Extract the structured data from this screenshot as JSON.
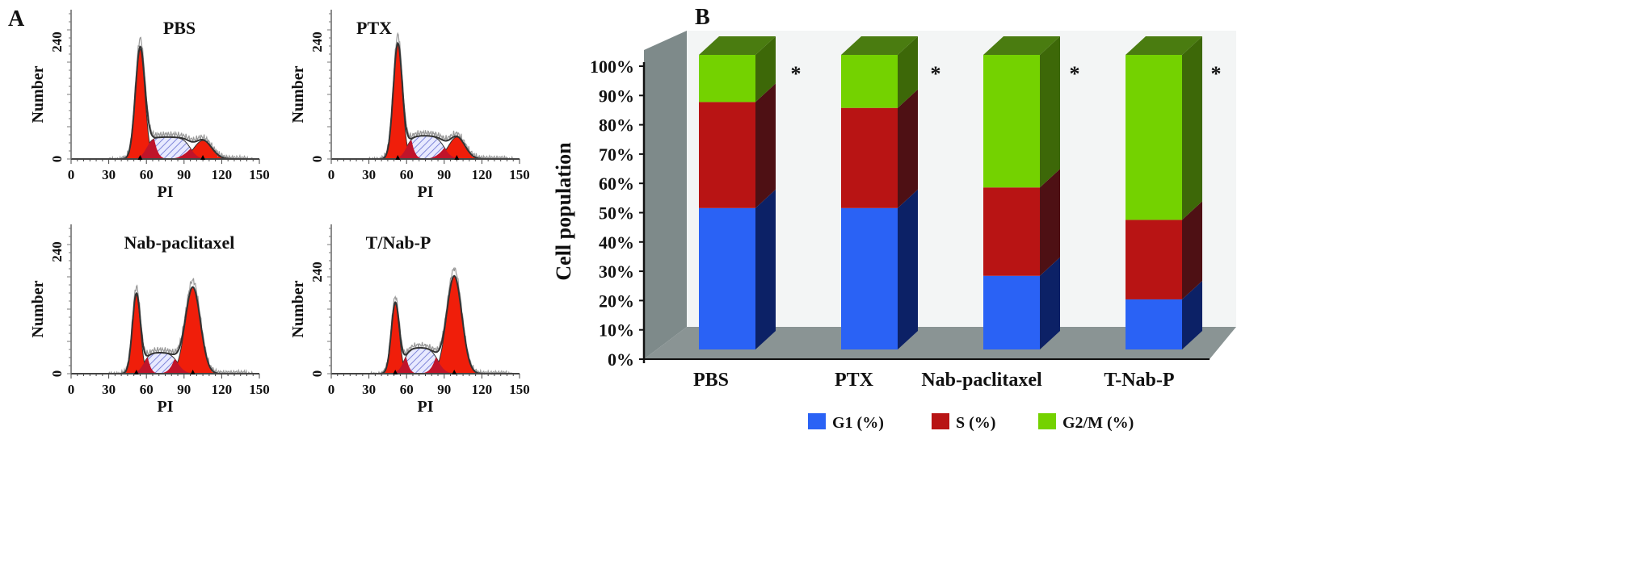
{
  "chart_data": [
    {
      "panel_label": "A",
      "type": "histogram",
      "xlabel": "PI",
      "ylabel": "Number",
      "x_ticks": [
        "0",
        "30",
        "60",
        "90",
        "120",
        "150"
      ],
      "y_ticks": [
        "0",
        "240"
      ],
      "xlim": [
        0,
        150
      ],
      "colors": {
        "g1": "#f01e0a",
        "s_phase": "#9aa0e0",
        "g2": "#f01e0a",
        "overlap": "#c0142a"
      },
      "panels": [
        {
          "title": "PBS",
          "g1": {
            "mean": 55,
            "height": 225,
            "sd": 3.8
          },
          "s": {
            "from": 60,
            "to": 95,
            "height": 45
          },
          "g2": {
            "mean": 105,
            "height": 38,
            "sd": 7
          }
        },
        {
          "title": "PTX",
          "g1": {
            "mean": 53,
            "height": 235,
            "sd": 3.6
          },
          "s": {
            "from": 60,
            "to": 90,
            "height": 48
          },
          "g2": {
            "mean": 100,
            "height": 45,
            "sd": 6.5
          }
        },
        {
          "title": "Nab-paclitaxel",
          "g1": {
            "mean": 52,
            "height": 155,
            "sd": 3.2
          },
          "s": {
            "from": 58,
            "to": 85,
            "height": 42
          },
          "g2": {
            "mean": 97,
            "height": 170,
            "sd": 6
          }
        },
        {
          "title": "T/Nab-P",
          "g1": {
            "mean": 51,
            "height": 165,
            "sd": 3.2
          },
          "s": {
            "from": 58,
            "to": 85,
            "height": 62
          },
          "g2": {
            "mean": 98,
            "height": 230,
            "sd": 6
          }
        }
      ]
    },
    {
      "panel_label": "B",
      "type": "bar",
      "stacked": true,
      "three_d": true,
      "ylabel": "Cell population",
      "ylim": [
        0,
        100
      ],
      "y_ticks": [
        "0%",
        "10%",
        "20%",
        "30%",
        "40%",
        "50%",
        "60%",
        "70%",
        "80%",
        "90%",
        "100%"
      ],
      "categories": [
        "PBS",
        "PTX",
        "Nab-paclitaxel",
        "T-Nab-P"
      ],
      "series": [
        {
          "name": "G1 (%)",
          "values": [
            48,
            48,
            25,
            17
          ],
          "color": "#2a62f5",
          "side": "#0c2166"
        },
        {
          "name": "S (%)",
          "values": [
            36,
            34,
            30,
            27
          ],
          "color": "#b81414",
          "side": "#4e1014"
        },
        {
          "name": "G2/M (%)",
          "values": [
            16,
            18,
            45,
            56
          ],
          "color": "#74d200",
          "side": "#3d6808"
        }
      ],
      "significance": [
        "*",
        "*",
        "*",
        "*"
      ],
      "legend_position": "bottom"
    }
  ]
}
